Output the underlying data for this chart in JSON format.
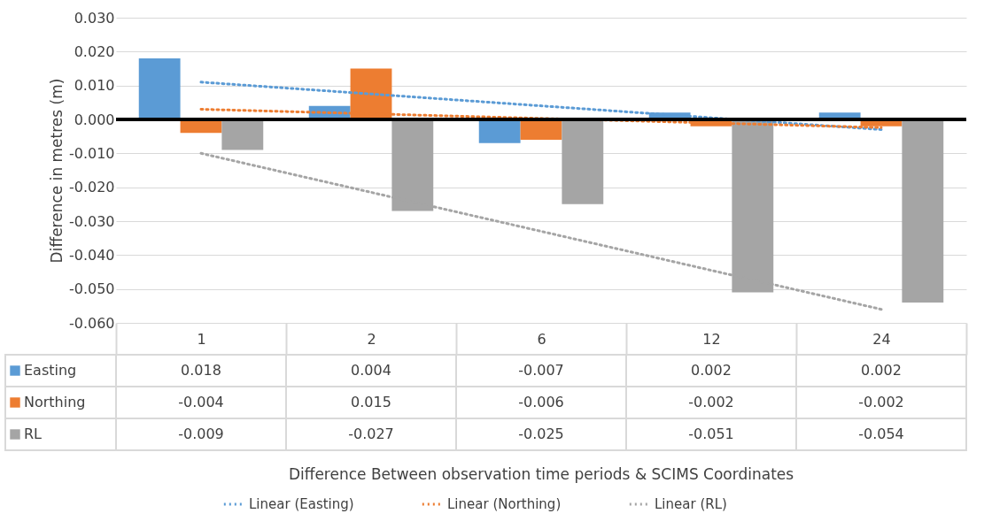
{
  "chart_data": {
    "type": "bar",
    "annotations": [
      "Difference Between observation time periods & SCIMS Coordinates"
    ],
    "ylabel": "Difference in metres (m)",
    "categories": [
      "1",
      "2",
      "6",
      "12",
      "24"
    ],
    "series": [
      {
        "name": "Easting",
        "color": "#5b9bd5",
        "values": [
          0.018,
          0.004,
          -0.007,
          0.002,
          0.002
        ],
        "value_labels": [
          "0.018",
          "0.004",
          "-0.007",
          "0.002",
          "0.002"
        ]
      },
      {
        "name": "Northing",
        "color": "#ed7d31",
        "values": [
          -0.004,
          0.015,
          -0.006,
          -0.002,
          -0.002
        ],
        "value_labels": [
          "-0.004",
          "0.015",
          "-0.006",
          "-0.002",
          "-0.002"
        ]
      },
      {
        "name": "RL",
        "color": "#a5a5a5",
        "values": [
          -0.009,
          -0.027,
          -0.025,
          -0.051,
          -0.054
        ],
        "value_labels": [
          "-0.009",
          "-0.027",
          "-0.025",
          "-0.051",
          "-0.054"
        ]
      },
      {
        "name": "Linear (Easting)",
        "type": "line",
        "line_style": "dotted",
        "color": "#5b9bd5",
        "x": [
          "1",
          "24"
        ],
        "values": [
          0.011,
          -0.003
        ]
      },
      {
        "name": "Linear (Northing)",
        "type": "line",
        "line_style": "dotted",
        "color": "#ed7d31",
        "x": [
          "1",
          "24"
        ],
        "values": [
          0.003,
          -0.0024
        ]
      },
      {
        "name": "Linear (RL)",
        "type": "line",
        "line_style": "dotted",
        "color": "#a5a5a5",
        "x": [
          "1",
          "24"
        ],
        "values": [
          -0.01,
          -0.056
        ]
      }
    ],
    "ylim": [
      -0.06,
      0.03
    ],
    "yticks": [
      {
        "value": -0.06,
        "label": "-0.060"
      },
      {
        "value": -0.05,
        "label": "-0.050"
      },
      {
        "value": -0.04,
        "label": "-0.040"
      },
      {
        "value": -0.03,
        "label": "-0.030"
      },
      {
        "value": -0.02,
        "label": "-0.020"
      },
      {
        "value": -0.01,
        "label": "-0.010"
      },
      {
        "value": 0,
        "label": "0.000"
      },
      {
        "value": 0.01,
        "label": "0.010"
      },
      {
        "value": 0.02,
        "label": "0.020"
      },
      {
        "value": 0.03,
        "label": "0.030"
      }
    ],
    "ref_lines": [
      {
        "axis": "y",
        "value": 0,
        "color": "#000000"
      }
    ],
    "grid": "y",
    "legend": "bottom"
  }
}
